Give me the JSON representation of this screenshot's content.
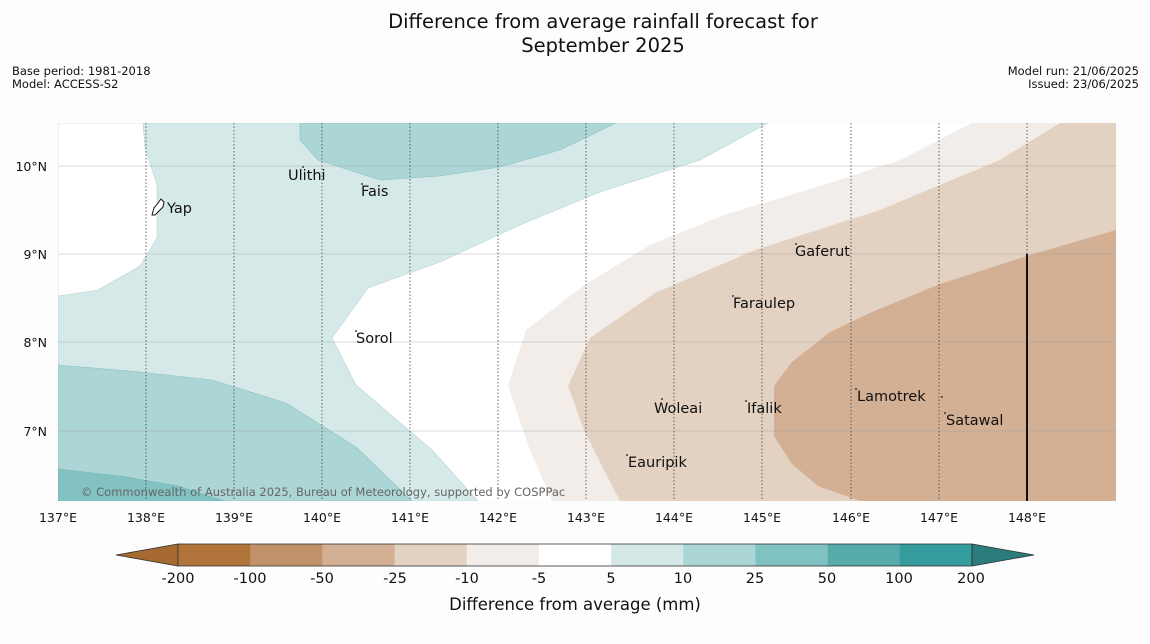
{
  "title": {
    "line1": "Difference from average rainfall forecast for",
    "line2": "September 2025"
  },
  "meta_left": {
    "base_period": "Base period: 1981-2018",
    "model": "Model: ACCESS-S2"
  },
  "meta_right": {
    "model_run": "Model run: 21/06/2025",
    "issued": "Issued: 23/06/2025"
  },
  "map": {
    "lon_labels": [
      "137°E",
      "138°E",
      "139°E",
      "140°E",
      "141°E",
      "142°E",
      "143°E",
      "144°E",
      "145°E",
      "146°E",
      "147°E",
      "148°E"
    ],
    "lat_labels": [
      "10°N",
      "9°N",
      "8°N",
      "7°N"
    ],
    "places": [
      "Ulithi",
      "Fais",
      "Yap",
      "Gaferut",
      "Faraulep",
      "Sorol",
      "Lamotrek",
      "Woleai",
      "Ifalik",
      "Satawal",
      "Eauripik"
    ],
    "copyright": "© Commonwealth of Australia 2025, Bureau of Meteorology, supported by COSPPac"
  },
  "legend": {
    "title": "Difference from average (mm)",
    "tick_labels": [
      "-200",
      "-100",
      "-50",
      "-25",
      "-10",
      "-5",
      "5",
      "10",
      "25",
      "50",
      "100",
      "200"
    ],
    "colors": [
      "#a6692f",
      "#b0743b",
      "#c1926a",
      "#d3b094",
      "#e3d1c1",
      "#f2ede9",
      "#ffffff",
      "#d4e8e8",
      "#acd5d5",
      "#80c2c2",
      "#58abab",
      "#349c9c",
      "#2b7d7d"
    ]
  }
}
